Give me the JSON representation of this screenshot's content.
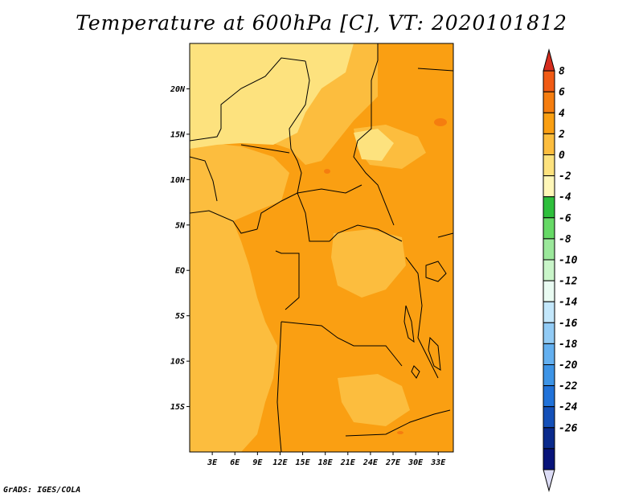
{
  "title": "Temperature at 600hPa [C], VT: 2020101812",
  "credit": "GrADS: IGES/COLA",
  "map": {
    "lon_range": [
      0,
      35
    ],
    "lat_range": [
      -20,
      25
    ],
    "lon_ticks": [
      {
        "value": 3,
        "label": "3E"
      },
      {
        "value": 6,
        "label": "6E"
      },
      {
        "value": 9,
        "label": "9E"
      },
      {
        "value": 12,
        "label": "12E"
      },
      {
        "value": 15,
        "label": "15E"
      },
      {
        "value": 18,
        "label": "18E"
      },
      {
        "value": 21,
        "label": "21E"
      },
      {
        "value": 24,
        "label": "24E"
      },
      {
        "value": 27,
        "label": "27E"
      },
      {
        "value": 30,
        "label": "30E"
      },
      {
        "value": 33,
        "label": "33E"
      }
    ],
    "lat_ticks": [
      {
        "value": 20,
        "label": "20N"
      },
      {
        "value": 15,
        "label": "15N"
      },
      {
        "value": 10,
        "label": "10N"
      },
      {
        "value": 5,
        "label": "5N"
      },
      {
        "value": 0,
        "label": "EQ"
      },
      {
        "value": -5,
        "label": "5S"
      },
      {
        "value": -10,
        "label": "10S"
      },
      {
        "value": -15,
        "label": "15S"
      }
    ]
  },
  "colorbar": {
    "labels": [
      "8",
      "6",
      "4",
      "2",
      "0",
      "-2",
      "-4",
      "-6",
      "-8",
      "-10",
      "-12",
      "-14",
      "-16",
      "-18",
      "-20",
      "-22",
      "-24",
      "-26"
    ],
    "colors": [
      "#d62d1e",
      "#f05a14",
      "#f57d0f",
      "#fa9f12",
      "#fcbd3e",
      "#fde27e",
      "#fff7b8",
      "#2ebf3c",
      "#66d966",
      "#9be89b",
      "#c9f5c9",
      "#e9fbf2",
      "#c3e7fb",
      "#92cbf5",
      "#64b0f0",
      "#3d94e6",
      "#2172d9",
      "#1450b8",
      "#0a2a8c",
      "#08147a",
      "#dcdcf5"
    ]
  }
}
